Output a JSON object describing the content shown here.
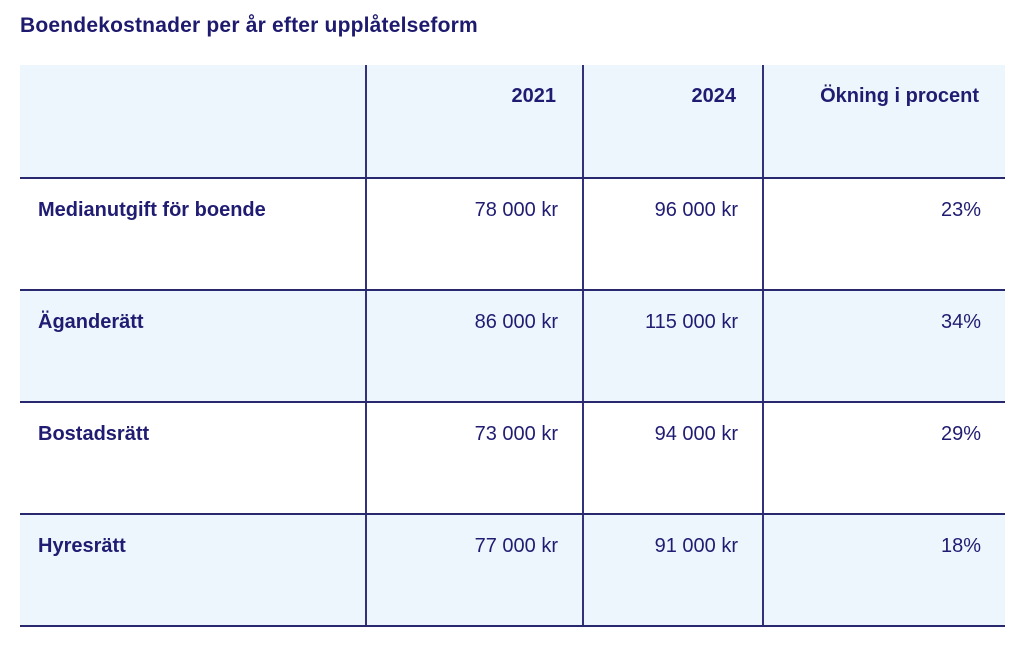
{
  "page_title": "Boendekostnader per år efter upplåtelseform",
  "colors": {
    "text_navy": "#201c72",
    "border_horizontal": "#28286e",
    "border_vertical": "#32327c",
    "row_light_blue": "#eef6fd",
    "row_white": "#ffffff",
    "page_background": "#ffffff"
  },
  "chart_data": {
    "type": "table",
    "title": "Boendekostnader per år efter upplåtelseform",
    "columns": [
      "",
      "2021",
      "2024",
      "Ökning i procent"
    ],
    "rows": [
      [
        "Medianutgift för boende",
        "78 000 kr",
        "96 000 kr",
        "23%"
      ],
      [
        "Äganderätt",
        "86 000 kr",
        "115 000 kr",
        "34%"
      ],
      [
        "Bostadsrätt",
        "73 000 kr",
        "94 000 kr",
        "29%"
      ],
      [
        "Hyresrätt",
        "77 000 kr",
        "91 000 kr",
        "18%"
      ]
    ],
    "numeric": {
      "categories": [
        "Medianutgift för boende",
        "Äganderätt",
        "Bostadsrätt",
        "Hyresrätt"
      ],
      "series": [
        {
          "name": "2021",
          "unit": "kr",
          "values": [
            78000,
            86000,
            73000,
            77000
          ]
        },
        {
          "name": "2024",
          "unit": "kr",
          "values": [
            96000,
            115000,
            94000,
            91000
          ]
        },
        {
          "name": "Ökning i procent",
          "unit": "%",
          "values": [
            23,
            34,
            29,
            18
          ]
        }
      ],
      "layout": {
        "zebra_striping": true,
        "header_background": "#eef6fd",
        "grid": "partial"
      }
    }
  }
}
